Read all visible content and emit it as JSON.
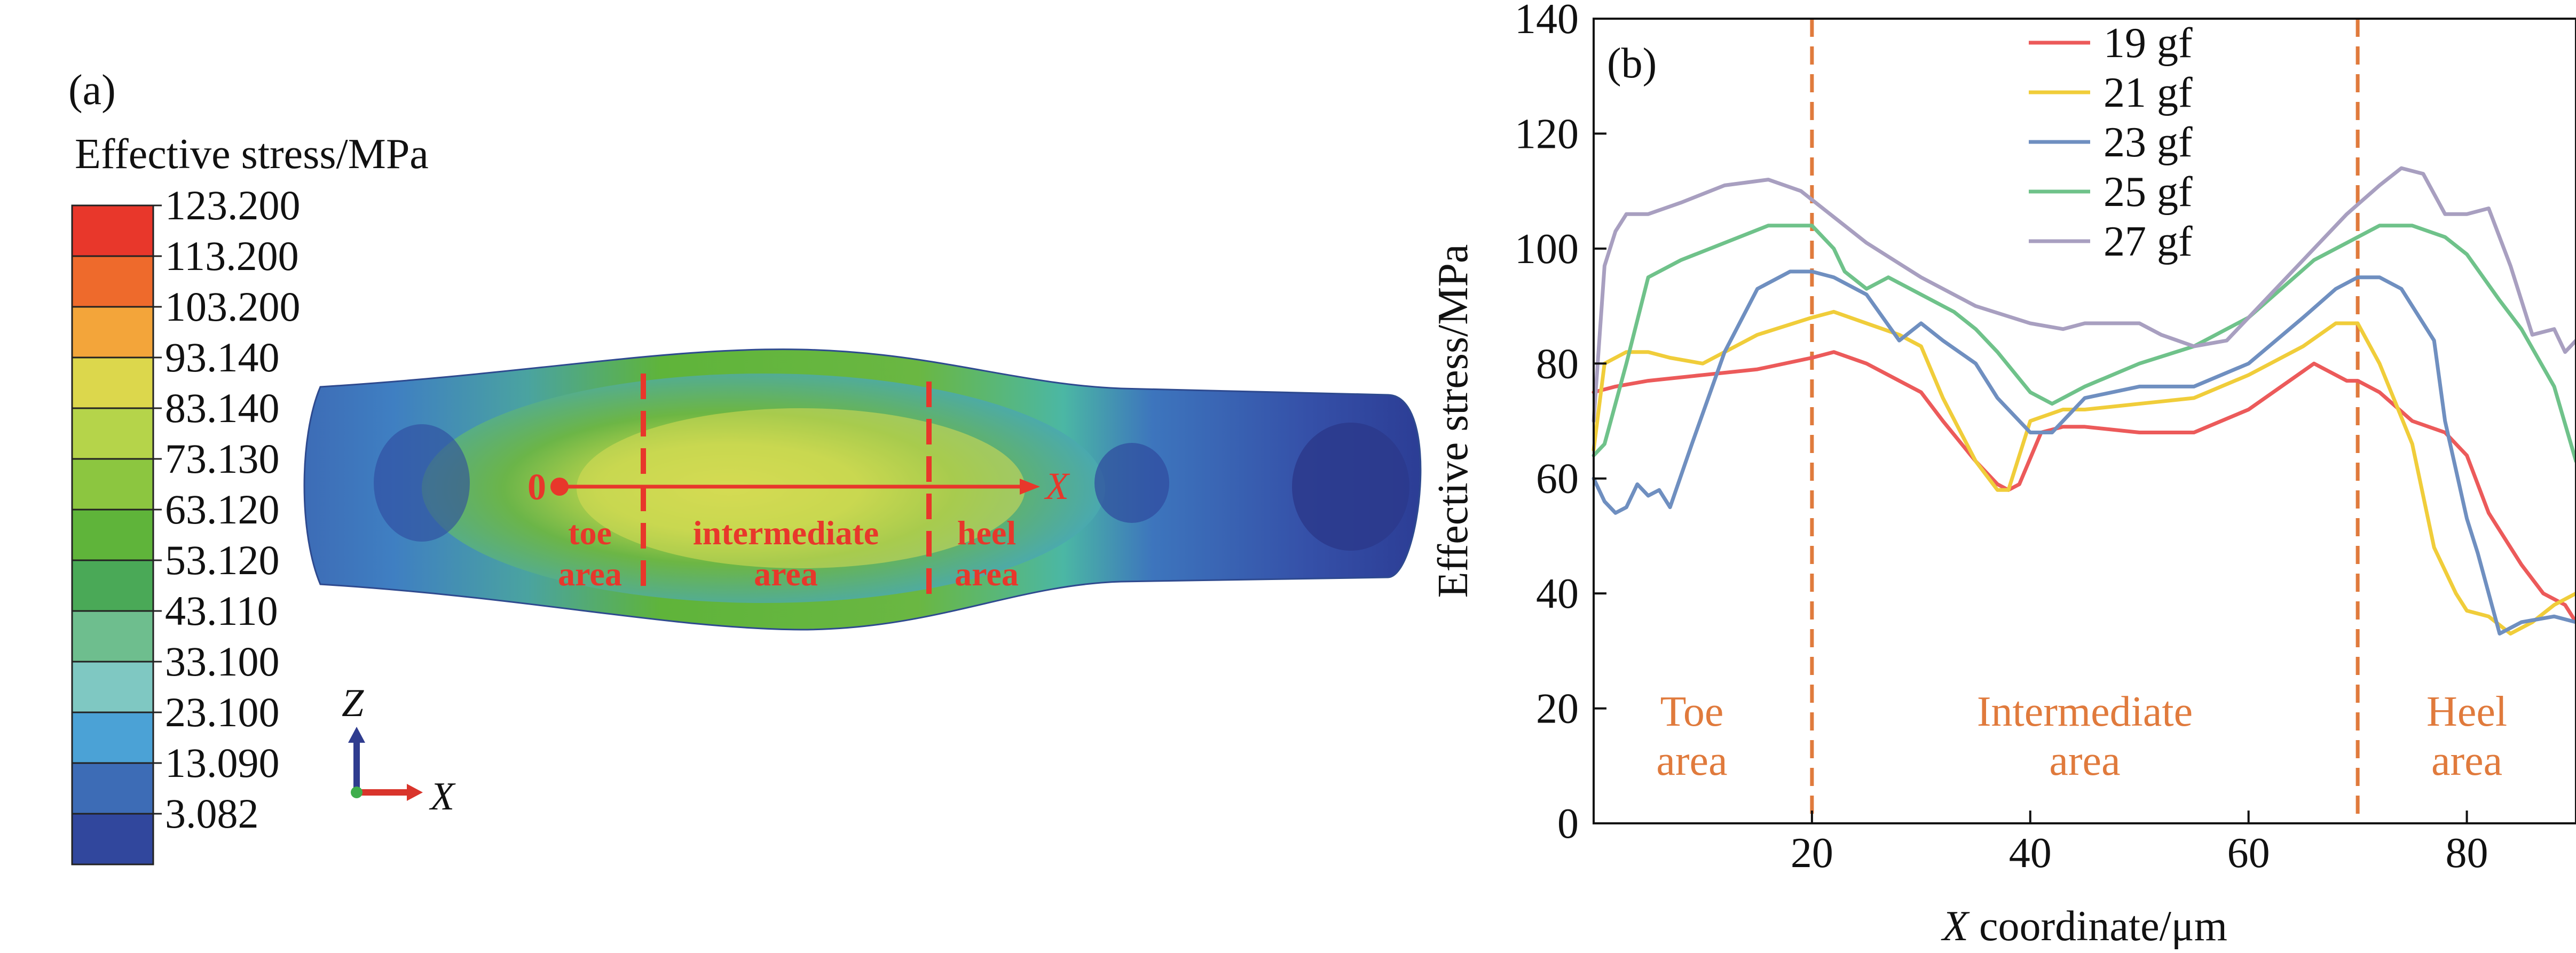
{
  "panel_a": {
    "label": "(a)",
    "legend_title": "Effective stress/MPa",
    "legend_values": [
      "123.200",
      "113.200",
      "103.200",
      "93.140",
      "83.140",
      "73.130",
      "63.120",
      "53.120",
      "43.110",
      "33.100",
      "23.100",
      "13.090",
      "3.082"
    ],
    "legend_colors": [
      "#e8372b",
      "#ee6a2c",
      "#f3a53a",
      "#dcd74c",
      "#b5d44a",
      "#8cc640",
      "#5fb43a",
      "#4aa957",
      "#6ebe8e",
      "#7fc8c2",
      "#4ba2d6",
      "#3d6cb6",
      "#31479d"
    ],
    "axis_origin": "0",
    "axis_x": "X",
    "triad_z": "Z",
    "triad_x": "X",
    "areas": {
      "toe": [
        "toe",
        "area"
      ],
      "intermediate": [
        "intermediate",
        "area"
      ],
      "heel": [
        "heel",
        "area"
      ]
    }
  },
  "chart_data": {
    "type": "line",
    "panel_label": "(b)",
    "xlabel_italic": "X",
    "xlabel_rest": " coordinate/μm",
    "ylabel": "Effective stress/MPa",
    "xlim": [
      0,
      90
    ],
    "ylim": [
      0,
      140
    ],
    "xticks": [
      20,
      40,
      60,
      80
    ],
    "yticks": [
      0,
      20,
      40,
      60,
      80,
      100,
      120,
      140
    ],
    "grid": false,
    "legend_position": "top-center",
    "vlines": [
      20,
      70
    ],
    "region_labels": [
      {
        "lines": [
          "Toe",
          "area"
        ],
        "x": 9,
        "y": 17
      },
      {
        "lines": [
          "Intermediate",
          "area"
        ],
        "x": 45,
        "y": 17
      },
      {
        "lines": [
          "Heel",
          "area"
        ],
        "x": 80,
        "y": 17
      }
    ],
    "series": [
      {
        "name": "19 gf",
        "color": "#ec5a5a",
        "x": [
          0,
          2,
          5,
          10,
          15,
          20,
          22,
          25,
          28,
          30,
          32,
          35,
          37,
          38,
          39,
          41,
          43,
          45,
          50,
          55,
          60,
          63,
          66,
          69,
          70,
          72,
          75,
          78,
          80,
          82,
          85,
          87,
          89,
          90
        ],
        "y": [
          75,
          76,
          77,
          78,
          79,
          81,
          82,
          80,
          77,
          75,
          70,
          63,
          59,
          58,
          59,
          68,
          69,
          69,
          68,
          68,
          72,
          76,
          80,
          77,
          77,
          75,
          70,
          68,
          64,
          54,
          45,
          40,
          38,
          35
        ]
      },
      {
        "name": "21 gf",
        "color": "#f0cd3a",
        "x": [
          0,
          1,
          3,
          5,
          7,
          10,
          15,
          20,
          22,
          25,
          28,
          30,
          32,
          35,
          37,
          38,
          40,
          43,
          45,
          50,
          55,
          60,
          65,
          68,
          70,
          72,
          75,
          77,
          79,
          80,
          82,
          84,
          86,
          88,
          90
        ],
        "y": [
          65,
          80,
          82,
          82,
          81,
          80,
          85,
          88,
          89,
          87,
          85,
          83,
          74,
          63,
          58,
          58,
          70,
          72,
          72,
          73,
          74,
          78,
          83,
          87,
          87,
          80,
          66,
          48,
          40,
          37,
          36,
          33,
          35,
          38,
          40
        ]
      },
      {
        "name": "23 gf",
        "color": "#6f8fc0",
        "x": [
          0,
          1,
          2,
          3,
          4,
          5,
          6,
          7,
          9,
          12,
          15,
          18,
          20,
          22,
          25,
          28,
          30,
          32,
          35,
          37,
          40,
          42,
          45,
          50,
          55,
          60,
          65,
          68,
          70,
          72,
          74,
          77,
          78,
          80,
          81,
          83,
          85,
          88,
          90
        ],
        "y": [
          60,
          56,
          54,
          55,
          59,
          57,
          58,
          55,
          66,
          82,
          93,
          96,
          96,
          95,
          92,
          84,
          87,
          84,
          80,
          74,
          68,
          68,
          74,
          76,
          76,
          80,
          88,
          93,
          95,
          95,
          93,
          84,
          70,
          53,
          47,
          33,
          35,
          36,
          35
        ]
      },
      {
        "name": "25 gf",
        "color": "#6fc28a",
        "x": [
          0,
          1,
          3,
          5,
          8,
          12,
          16,
          20,
          22,
          23,
          25,
          27,
          30,
          33,
          35,
          37,
          40,
          42,
          45,
          50,
          55,
          60,
          63,
          66,
          69,
          72,
          75,
          78,
          80,
          83,
          85,
          88,
          90
        ],
        "y": [
          64,
          66,
          80,
          95,
          98,
          101,
          104,
          104,
          100,
          96,
          93,
          95,
          92,
          89,
          86,
          82,
          75,
          73,
          76,
          80,
          83,
          88,
          93,
          98,
          101,
          104,
          104,
          102,
          99,
          91,
          86,
          76,
          63
        ]
      },
      {
        "name": "27 gf",
        "color": "#a89fc0",
        "x": [
          0,
          1,
          2,
          3,
          5,
          8,
          12,
          16,
          19,
          21,
          25,
          30,
          35,
          40,
          43,
          45,
          47,
          50,
          52,
          55,
          58,
          60,
          63,
          66,
          69,
          72,
          74,
          76,
          78,
          80,
          82,
          84,
          86,
          88,
          89,
          90
        ],
        "y": [
          70,
          97,
          103,
          106,
          106,
          108,
          111,
          112,
          110,
          107,
          101,
          95,
          90,
          87,
          86,
          87,
          87,
          87,
          85,
          83,
          84,
          88,
          94,
          100,
          106,
          111,
          114,
          113,
          106,
          106,
          107,
          97,
          85,
          86,
          82,
          84
        ]
      }
    ]
  }
}
